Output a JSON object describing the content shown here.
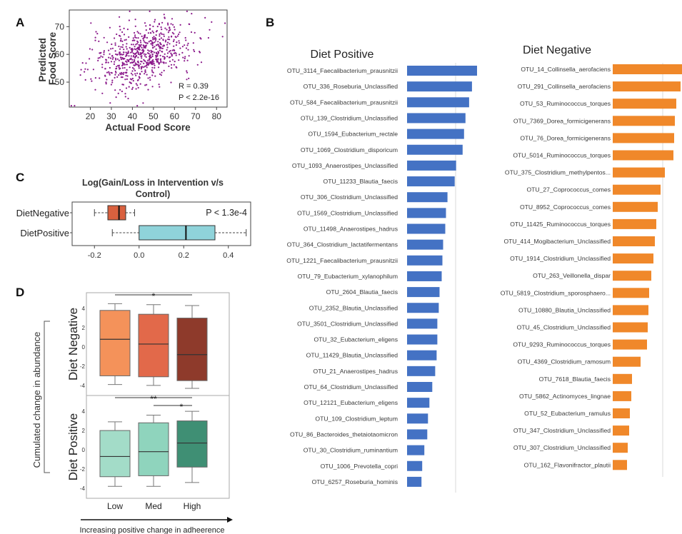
{
  "panels": {
    "a": "A",
    "b": "B",
    "c": "C",
    "d": "D"
  },
  "chart_data": [
    {
      "type": "scatter",
      "panel": "A",
      "xlabel": "Actual Food Score",
      "ylabel": "Predicted Food Score",
      "xlim": [
        10,
        85
      ],
      "ylim": [
        41,
        76
      ],
      "xticks": [
        "20",
        "30",
        "40",
        "50",
        "60",
        "70",
        "80"
      ],
      "yticks": [
        "50",
        "60",
        "70"
      ],
      "annotations": [
        "R = 0.39",
        "P < 2.2e-16"
      ],
      "point_color": "#8b1a8b",
      "n_points": 700,
      "x_center": 45,
      "x_spread": 12,
      "y_center": 60,
      "y_spread": 6,
      "correlation": 0.39
    },
    {
      "type": "box",
      "panel": "C",
      "title": "Log(Gain/Loss in Intervention v/s",
      "title2": "Control)",
      "xlim": [
        -0.3,
        0.5
      ],
      "xticks": [
        "-0.2",
        "0.0",
        "0.2",
        "0.4"
      ],
      "annotation": "P < 1.3e-4",
      "series": [
        {
          "name": "DietNegative",
          "whisker_low": -0.2,
          "q1": -0.14,
          "median": -0.09,
          "q3": -0.06,
          "whisker_high": -0.02,
          "color": "#d9603e"
        },
        {
          "name": "DietPositive",
          "whisker_low": -0.12,
          "q1": 0.0,
          "median": 0.21,
          "q3": 0.34,
          "whisker_high": 0.48,
          "color": "#8fd3da"
        }
      ]
    },
    {
      "type": "box",
      "panel": "D",
      "ylabel": "Cumulated change in abundance",
      "xlabel": "Increasing positive change in adheerence",
      "categories": [
        "Low",
        "Med",
        "High"
      ],
      "ylim": [
        -4.6,
        4.6
      ],
      "yticks": [
        "-4",
        "-2",
        "0",
        "2",
        "4"
      ],
      "groups": [
        {
          "name": "Diet Negative",
          "significance": [
            {
              "label": "*",
              "from": 0,
              "to": 2
            }
          ],
          "boxes": [
            {
              "whisker_low": -3.9,
              "q1": -3.0,
              "median": 0.8,
              "q3": 3.8,
              "whisker_high": 4.5,
              "color": "#f4925a"
            },
            {
              "whisker_low": -4.0,
              "q1": -3.1,
              "median": 0.3,
              "q3": 3.4,
              "whisker_high": 4.4,
              "color": "#e2694a"
            },
            {
              "whisker_low": -4.3,
              "q1": -3.5,
              "median": -0.8,
              "q3": 3.0,
              "whisker_high": 4.3,
              "color": "#8e3a2b"
            }
          ]
        },
        {
          "name": "Diet Positive",
          "significance": [
            {
              "label": "**",
              "from": 0,
              "to": 2
            },
            {
              "label": "*",
              "from": 1,
              "to": 2
            }
          ],
          "boxes": [
            {
              "whisker_low": -3.8,
              "q1": -2.8,
              "median": -0.7,
              "q3": 2.0,
              "whisker_high": 2.9,
              "color": "#a3dcc8"
            },
            {
              "whisker_low": -3.8,
              "q1": -2.7,
              "median": -0.2,
              "q3": 2.8,
              "whisker_high": 3.6,
              "color": "#8fd4bd"
            },
            {
              "whisker_low": -3.4,
              "q1": -1.8,
              "median": 0.7,
              "q3": 3.0,
              "whisker_high": 4.0,
              "color": "#3f8f74"
            }
          ]
        }
      ]
    },
    {
      "type": "bar",
      "panel": "B",
      "orientation": "horizontal",
      "title": "Diet Positive",
      "color": "#4472c4",
      "categories": [
        "OTU_3114_Faecalibacterium_prausnitzii",
        "OTU_336_Roseburia_Unclassified",
        "OTU_584_Faecalibacterium_prausnitzii",
        "OTU_139_Clostridium_Unclassified",
        "OTU_1594_Eubacterium_rectale",
        "OTU_1069_Clostridium_disporicum",
        "OTU_1093_Anaerostipes_Unclassified",
        "OTU_11233_Blautia_faecis",
        "OTU_306_Clostridium_Unclassified",
        "OTU_1569_Clostridium_Unclassified",
        "OTU_11498_Anaerostipes_hadrus",
        "OTU_364_Clostridium_lactatifermentans",
        "OTU_1221_Faecalibacterium_prausnitzii",
        "OTU_79_Eubacterium_xylanophilum",
        "OTU_2604_Blautia_faecis",
        "OTU_2352_Blautia_Unclassified",
        "OTU_3501_Clostridium_Unclassified",
        "OTU_32_Eubacterium_eligens",
        "OTU_11429_Blautia_Unclassified",
        "OTU_21_Anaerostipes_hadrus",
        "OTU_64_Clostridium_Unclassified",
        "OTU_12121_Eubacterium_eligens",
        "OTU_109_Clostridium_leptum",
        "OTU_86_Bacteroides_thetaiotaomicron",
        "OTU_30_Clostridium_ruminantium",
        "OTU_1006_Prevotella_copri",
        "OTU_6257_Roseburia_hominis"
      ],
      "values": [
        97,
        90,
        86,
        81,
        79,
        77,
        68,
        66,
        56,
        54,
        53,
        50,
        49,
        48,
        45,
        44,
        42,
        42,
        41,
        39,
        35,
        31,
        29,
        28,
        24,
        21,
        20
      ],
      "xlim": [
        0,
        100
      ]
    },
    {
      "type": "bar",
      "panel": "B",
      "orientation": "horizontal",
      "title": "Diet Negative",
      "color": "#f0882a",
      "categories": [
        "OTU_14_Collinsella_aerofaciens",
        "OTU_291_Collinsella_aerofaciens",
        "OTU_53_Ruminococcus_torques",
        "OTU_7369_Dorea_formicigenerans",
        "OTU_76_Dorea_formicigenerans",
        "OTU_5014_Ruminococcus_torques",
        "OTU_375_Clostridium_methylpentos...",
        "OTU_27_Coprococcus_comes",
        "OTU_8952_Coprococcus_comes",
        "OTU_11425_Ruminococcus_torques",
        "OTU_414_Mogibacterium_Unclassified",
        "OTU_1914_Clostridium_Unclassified",
        "OTU_263_Veillonella_dispar",
        "OTU_5819_Clostridium_sporosphaero...",
        "OTU_10880_Blautia_Unclassified",
        "OTU_45_Clostridium_Unclassified",
        "OTU_9293_Ruminococcus_torques",
        "OTU_4369_Clostridium_ramosum",
        "OTU_7618_Blautia_faecis",
        "OTU_5862_Actinomyces_lingnae",
        "OTU_52_Eubacterium_ramulus",
        "OTU_347_Clostridium_Unclassified",
        "OTU_307_Clostridium_Unclassified",
        "OTU_162_Flavonifractor_plautii"
      ],
      "values": [
        97,
        95,
        89,
        87,
        86,
        85,
        73,
        67,
        63,
        61,
        59,
        57,
        54,
        51,
        50,
        49,
        48,
        39,
        27,
        26,
        24,
        23,
        21,
        20
      ],
      "xlim": [
        0,
        100
      ]
    }
  ]
}
